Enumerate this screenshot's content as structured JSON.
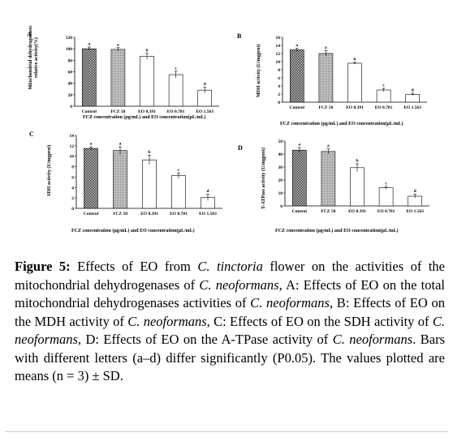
{
  "chart_data": [
    {
      "panel": "A",
      "type": "bar",
      "categories": [
        "Control",
        "FCZ 50",
        "EO 0.391",
        "EO 0.781",
        "EO 1.563"
      ],
      "values": [
        100,
        99,
        87,
        55,
        28
      ],
      "errors": [
        3,
        3,
        5,
        6,
        5
      ],
      "letters": [
        "a",
        "a",
        "b",
        "c",
        "d"
      ],
      "ylabel_lines": [
        "Mitochondrial dehydrogenases",
        "relative activity(%)"
      ],
      "xlabel": "FCZ concentration (μg/mL) and EO concentration(μL/mL)",
      "ylim": [
        0,
        120
      ],
      "yticks": [
        0,
        20,
        40,
        60,
        80,
        100,
        120
      ]
    },
    {
      "panel": "B",
      "type": "bar",
      "categories": [
        "Control",
        "FCZ 50",
        "EO 0.391",
        "EO 0.781",
        "EO 1.563"
      ],
      "values": [
        12.9,
        12,
        9.6,
        3,
        1.9
      ],
      "errors": [
        0.4,
        0.7,
        0.2,
        0.4,
        0.3
      ],
      "letters": [
        "a",
        "a",
        "b",
        "c",
        "d"
      ],
      "ylabel": "MDH activity (U/mgprot)",
      "xlabel": "FCZ concentration (μg/mL) and EO concentration(μL/mL)",
      "ylim": [
        0,
        16
      ],
      "yticks": [
        0,
        2,
        4,
        6,
        8,
        10,
        12,
        14,
        16
      ]
    },
    {
      "panel": "C",
      "type": "bar",
      "categories": [
        "Control",
        "FCZ 50",
        "EO 0.391",
        "EO 0.781",
        "EO 1.563"
      ],
      "values": [
        11.5,
        11.1,
        9.3,
        6.3,
        2.1
      ],
      "errors": [
        0.3,
        0.7,
        0.9,
        0.5,
        0.6
      ],
      "letters": [
        "a",
        "a",
        "b",
        "c",
        "d"
      ],
      "ylabel": "SDH activity (U/mgprot)",
      "xlabel": "FCZ concentration (μg/mL) and EO concentration(μL/mL)",
      "ylim": [
        0,
        14
      ],
      "yticks": [
        0,
        2,
        4,
        6,
        8,
        10,
        12,
        14
      ]
    },
    {
      "panel": "D",
      "type": "bar",
      "categories": [
        "Control",
        "FCZ 50",
        "EO 0.391",
        "EO 0.781",
        "EO 1.563"
      ],
      "values": [
        43,
        42,
        29.5,
        14,
        7.5
      ],
      "errors": [
        2,
        2,
        3,
        1,
        1.5
      ],
      "letters": [
        "a",
        "a",
        "b",
        "c",
        "d"
      ],
      "ylabel": "T-ATPase activity (U/mgprot)",
      "xlabel": "FCZ concentration (μg/mL) and EO concentration(μL/mL)",
      "ylim": [
        0,
        50
      ],
      "yticks": [
        0,
        10,
        20,
        30,
        40,
        50
      ]
    }
  ],
  "caption": {
    "label": "Figure 5:",
    "parts": [
      {
        "t": " Effects of EO from "
      },
      {
        "t": "C. tinctoria",
        "i": true
      },
      {
        "t": " flower on the activities of the mitochondrial dehydrogenases of "
      },
      {
        "t": "C. neoformans",
        "i": true
      },
      {
        "t": ", A: Effects of EO on the total mitochondrial dehydrogenases activities of "
      },
      {
        "t": "C. neoformans",
        "i": true
      },
      {
        "t": ", B: Effects of EO on the MDH activity of "
      },
      {
        "t": "C. neoformans",
        "i": true
      },
      {
        "t": ", C: Effects of EO on the SDH activity of "
      },
      {
        "t": "C. neoformans",
        "i": true
      },
      {
        "t": ", D: Effects of EO on the A-TPase activity of "
      },
      {
        "t": "C. neoformans",
        "i": true
      },
      {
        "t": ". Bars with different letters (a–d) differ significantly (P0.05). The values plotted are means (n = 3) ± SD."
      }
    ]
  },
  "fill_colors": {
    "bar_outline": "#000000",
    "control_fill": "#000000",
    "fcz_fill": "#9a9a9a",
    "eo_fill": "#ffffff"
  }
}
